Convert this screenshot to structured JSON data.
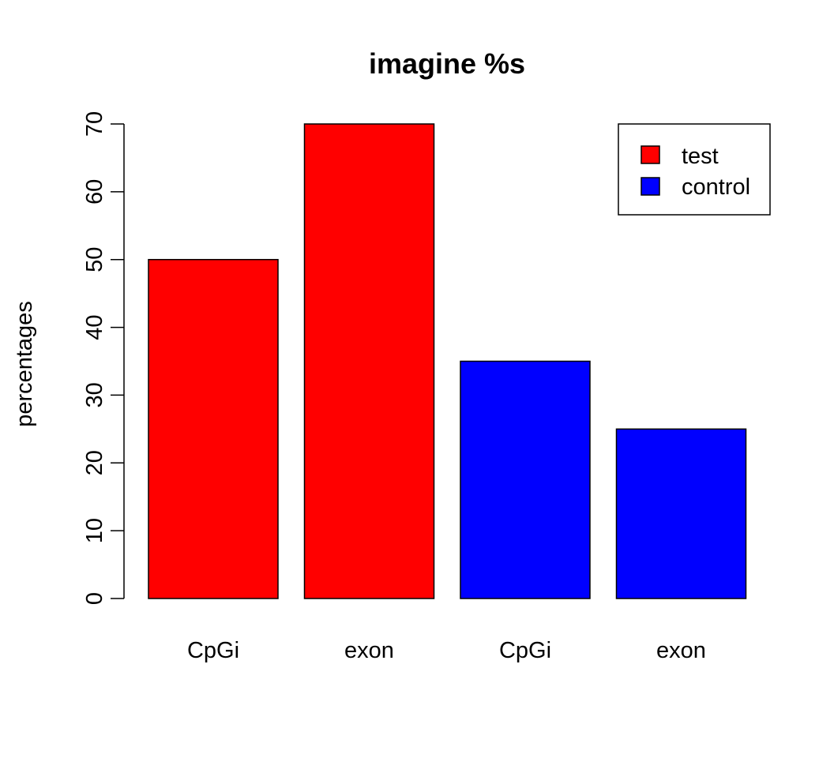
{
  "chart_data": {
    "type": "bar",
    "title": "imagine %s",
    "xlabel": "",
    "ylabel": "percentages",
    "categories": [
      "CpGi",
      "exon",
      "CpGi",
      "exon"
    ],
    "values": [
      50,
      70,
      35,
      25
    ],
    "bar_colors": [
      "#ff0000",
      "#ff0000",
      "#0000ff",
      "#0000ff"
    ],
    "ylim": [
      0,
      70
    ],
    "yticks": [
      0,
      10,
      20,
      30,
      40,
      50,
      60,
      70
    ],
    "grid": false,
    "legend": {
      "position": "top-right",
      "entries": [
        {
          "label": "test",
          "color": "#ff0000"
        },
        {
          "label": "control",
          "color": "#0000ff"
        }
      ]
    }
  }
}
